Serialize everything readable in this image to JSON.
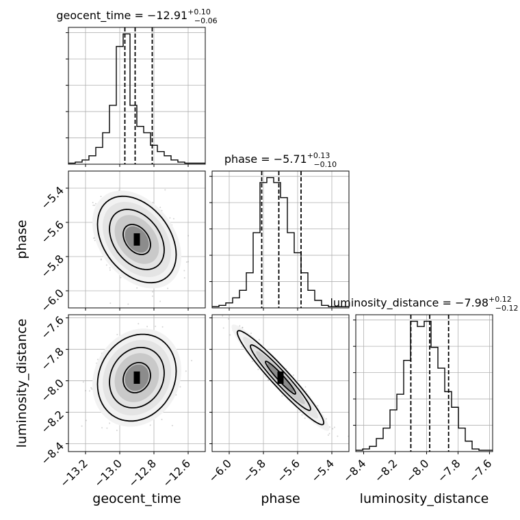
{
  "chart_data": {
    "type": "corner",
    "parameters": [
      "geocent_time",
      "phase",
      "luminosity_distance"
    ],
    "titles": [
      {
        "name": "geocent_time",
        "median": "−12.91",
        "plus": "+0.10",
        "minus": "−0.06"
      },
      {
        "name": "phase",
        "median": "−5.71",
        "plus": "+0.13",
        "minus": "−0.10"
      },
      {
        "name": "luminosity_distance",
        "median": "−7.98",
        "plus": "+0.12",
        "minus": "−0.12"
      }
    ],
    "axes": {
      "geocent_time": {
        "range": [
          -13.3,
          -12.5
        ],
        "ticks": [
          -13.2,
          -13.0,
          -12.8,
          -12.6
        ],
        "tick_labels": [
          "−13.2",
          "−13.0",
          "−12.8",
          "−12.6"
        ]
      },
      "phase": {
        "range": [
          -6.1,
          -5.3
        ],
        "ticks": [
          -6.0,
          -5.8,
          -5.6,
          -5.4
        ],
        "tick_labels": [
          "−6.0",
          "−5.8",
          "−5.6",
          "−5.4"
        ]
      },
      "luminosity_distance": {
        "range": [
          -8.45,
          -7.58
        ],
        "ticks": [
          -8.4,
          -8.2,
          -8.0,
          -7.8,
          -7.6
        ],
        "tick_labels": [
          "−8.4",
          "−8.2",
          "−8.0",
          "−7.8",
          "−7.6"
        ]
      }
    },
    "quantiles": {
      "geocent_time": [
        -12.97,
        -12.91,
        -12.81
      ],
      "phase": [
        -5.81,
        -5.71,
        -5.58
      ],
      "luminosity_distance": [
        -8.1,
        -7.98,
        -7.86
      ]
    },
    "histograms": {
      "geocent_time": {
        "edges_start": -13.3,
        "bin_width": 0.04,
        "counts": [
          0.5,
          1,
          2,
          4,
          8,
          15,
          28,
          56,
          62,
          28,
          18,
          15,
          9,
          6,
          4,
          2,
          1,
          0.5,
          0.5,
          0.5
        ]
      },
      "phase": {
        "edges_start": -6.1,
        "bin_width": 0.04,
        "counts": [
          0.5,
          1,
          2,
          4,
          7,
          14,
          30,
          50,
          52,
          50,
          44,
          30,
          22,
          14,
          7,
          3,
          1,
          0.5,
          0.5,
          0.5
        ]
      },
      "luminosity_distance": {
        "edges_start": -8.45,
        "bin_width": 0.0435,
        "counts": [
          0.5,
          1,
          2,
          5,
          9,
          16,
          22,
          35,
          50,
          48,
          50,
          40,
          32,
          23,
          17,
          9,
          4,
          1,
          0.5,
          0.5
        ]
      }
    },
    "pairs": [
      {
        "x": "geocent_time",
        "y": "phase",
        "center": [
          -12.9,
          -5.7
        ],
        "sd": [
          0.1,
          0.11
        ],
        "rho": -0.35
      },
      {
        "x": "geocent_time",
        "y": "luminosity_distance",
        "center": [
          -12.9,
          -7.98
        ],
        "sd": [
          0.1,
          0.12
        ],
        "rho": 0.15
      },
      {
        "x": "phase",
        "y": "luminosity_distance",
        "center": [
          -5.7,
          -7.98
        ],
        "sd": [
          0.11,
          0.13
        ],
        "rho": -0.96
      }
    ],
    "grid": true,
    "linestyle_quantiles": "dashed",
    "colors": {
      "line": "#000000",
      "grid": "#b0b0b0",
      "points": "#808080",
      "background": "#ffffff"
    }
  }
}
